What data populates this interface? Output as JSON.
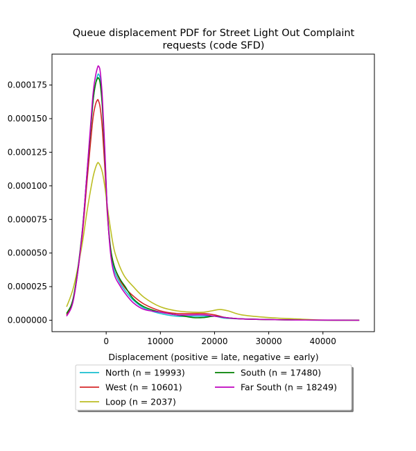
{
  "chart_data": {
    "type": "line",
    "title_line1": "Queue displacement PDF for Street Light Out Complaint",
    "title_line2": "requests (code SFD)",
    "xlabel": "Displacement (positive = late, negative = early)",
    "ylabel": "",
    "xlim": [
      -10000,
      49500
    ],
    "ylim": [
      -8.5e-06,
      0.000198
    ],
    "xticks": [
      0,
      10000,
      20000,
      30000,
      40000
    ],
    "xtick_labels": [
      "0",
      "10000",
      "20000",
      "30000",
      "40000"
    ],
    "yticks": [
      0.0,
      2.5e-05,
      5e-05,
      7.5e-05,
      0.0001,
      0.000125,
      0.00015,
      0.000175
    ],
    "ytick_labels": [
      "0.000000",
      "0.000025",
      "0.000050",
      "0.000075",
      "0.000100",
      "0.000125",
      "0.000150",
      "0.000175"
    ],
    "grid": false,
    "legend_placement": "below-center",
    "legend_columns": 2,
    "series": [
      {
        "name": "North (n = 19993)",
        "color": "#17becf",
        "x": [
          -7300,
          -6000,
          -4500,
          -3500,
          -2500,
          -2000,
          -1600,
          -1400,
          -1100,
          -700,
          -200,
          200,
          800,
          1500,
          2500,
          3500,
          5000,
          7000,
          10000,
          13000,
          16000,
          18000,
          20000,
          22000,
          25000,
          30000,
          35000,
          40000,
          46700
        ],
        "y": [
          4e-06,
          1.7e-05,
          6.2e-05,
          0.000111,
          0.00016,
          0.000175,
          0.000182,
          0.000183,
          0.000179,
          0.00016,
          0.00012,
          8.2e-05,
          5.2e-05,
          3.7e-05,
          2.8e-05,
          2.2e-05,
          1.5e-05,
          9e-06,
          5e-06,
          3e-06,
          3e-06,
          3e-06,
          3e-06,
          1.5e-06,
          1e-06,
          5e-07,
          2e-07,
          1e-07,
          0.0
        ]
      },
      {
        "name": "West (n = 10601)",
        "color": "#d62728",
        "x": [
          -7300,
          -6000,
          -4500,
          -3500,
          -2500,
          -2000,
          -1600,
          -1400,
          -1100,
          -700,
          -200,
          200,
          800,
          1500,
          2500,
          3500,
          5000,
          7000,
          10000,
          13000,
          16000,
          18000,
          20000,
          22000,
          25000,
          30000,
          35000,
          40000,
          46700
        ],
        "y": [
          4e-06,
          1.7e-05,
          6e-05,
          0.000105,
          0.000148,
          0.00016,
          0.000164,
          0.000163,
          0.000158,
          0.000142,
          0.00011,
          8e-05,
          5.3e-05,
          4e-05,
          3e-05,
          2.4e-05,
          1.8e-05,
          1.2e-05,
          7e-06,
          5e-06,
          5e-06,
          5e-06,
          4e-06,
          2e-06,
          1e-06,
          5e-07,
          2e-07,
          1e-07,
          0.0
        ]
      },
      {
        "name": "Loop (n = 2037)",
        "color": "#bcbd22",
        "x": [
          -7300,
          -6000,
          -4500,
          -3500,
          -2500,
          -2000,
          -1600,
          -1400,
          -1100,
          -700,
          -200,
          200,
          800,
          1500,
          2500,
          3500,
          5000,
          7000,
          10000,
          13000,
          16000,
          18000,
          19500,
          21000,
          22500,
          25000,
          30000,
          35000,
          40000,
          46700
        ],
        "y": [
          1e-05,
          2.5e-05,
          5.5e-05,
          8.2e-05,
          0.000105,
          0.000113,
          0.000117,
          0.000117,
          0.000115,
          0.00011,
          9.8e-05,
          8.5e-05,
          6.8e-05,
          5.2e-05,
          4e-05,
          3.2e-05,
          2.5e-05,
          1.7e-05,
          1e-05,
          7e-06,
          6e-06,
          6e-06,
          7e-06,
          8e-06,
          7e-06,
          4e-06,
          2e-06,
          1e-06,
          2e-07,
          0.0
        ]
      },
      {
        "name": "South (n = 17480)",
        "color": "#008000",
        "x": [
          -7300,
          -6000,
          -4500,
          -3500,
          -2500,
          -2000,
          -1600,
          -1400,
          -1100,
          -700,
          -200,
          200,
          800,
          1500,
          2500,
          3500,
          5000,
          7000,
          10000,
          13000,
          16000,
          18000,
          20000,
          22000,
          25000,
          30000,
          35000,
          40000,
          46700
        ],
        "y": [
          5e-06,
          1.8e-05,
          6.3e-05,
          0.000111,
          0.00016,
          0.000175,
          0.00018,
          0.00018,
          0.000176,
          0.000158,
          0.000118,
          8.3e-05,
          5.4e-05,
          4e-05,
          3.1e-05,
          2.5e-05,
          1.6e-05,
          1e-05,
          6e-06,
          4e-06,
          2e-06,
          2e-06,
          3e-06,
          2e-06,
          1e-06,
          5e-07,
          2e-07,
          1e-07,
          0.0
        ]
      },
      {
        "name": "Far South (n = 18249)",
        "color": "#bf00bf",
        "x": [
          -7300,
          -6000,
          -4500,
          -3500,
          -2500,
          -2000,
          -1600,
          -1400,
          -1100,
          -700,
          -200,
          200,
          800,
          1500,
          2500,
          3500,
          5000,
          7000,
          10000,
          13000,
          16000,
          18000,
          20000,
          22000,
          25000,
          30000,
          35000,
          40000,
          46700
        ],
        "y": [
          3e-06,
          1.6e-05,
          6.2e-05,
          0.000112,
          0.000165,
          0.000181,
          0.000188,
          0.000189,
          0.000185,
          0.000165,
          0.000122,
          8.3e-05,
          5e-05,
          3.4e-05,
          2.6e-05,
          2e-05,
          1.3e-05,
          8e-06,
          6e-06,
          4e-06,
          4e-06,
          4e-06,
          3e-06,
          2e-06,
          1e-06,
          5e-07,
          2e-07,
          1e-07,
          0.0
        ]
      }
    ]
  }
}
